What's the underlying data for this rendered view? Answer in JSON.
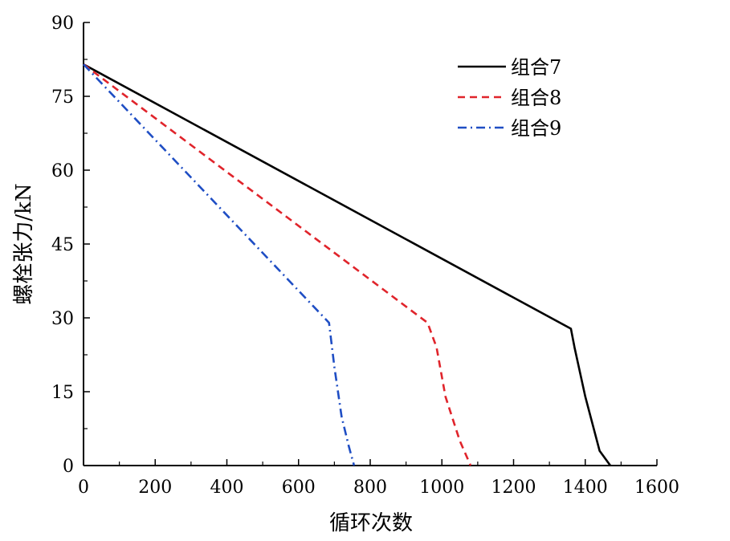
{
  "chart_data": {
    "type": "line",
    "xlabel": "循环次数",
    "ylabel": "螺栓张力/kN",
    "xlim": [
      0,
      1600
    ],
    "ylim": [
      0,
      90
    ],
    "xticks": [
      0,
      200,
      400,
      600,
      800,
      1000,
      1200,
      1400,
      1600
    ],
    "yticks": [
      0,
      15,
      30,
      45,
      60,
      75,
      90
    ],
    "grid": false,
    "legend_position": "top-right",
    "series": [
      {
        "name": "组合7",
        "color": "#000000",
        "dash": "solid",
        "x": [
          0,
          1360,
          1370,
          1400,
          1440,
          1470
        ],
        "y": [
          81.5,
          27.8,
          24,
          14,
          3,
          0
        ]
      },
      {
        "name": "组合8",
        "color": "#e0242b",
        "dash": "dashed",
        "x": [
          0,
          960,
          985,
          1010,
          1050,
          1080
        ],
        "y": [
          81.5,
          29,
          24,
          14,
          5,
          0
        ]
      },
      {
        "name": "组合9",
        "color": "#1f4ec4",
        "dash": "dashdot",
        "x": [
          0,
          685,
          700,
          720,
          740,
          755
        ],
        "y": [
          81.5,
          29,
          20,
          10,
          4,
          0
        ]
      }
    ]
  }
}
